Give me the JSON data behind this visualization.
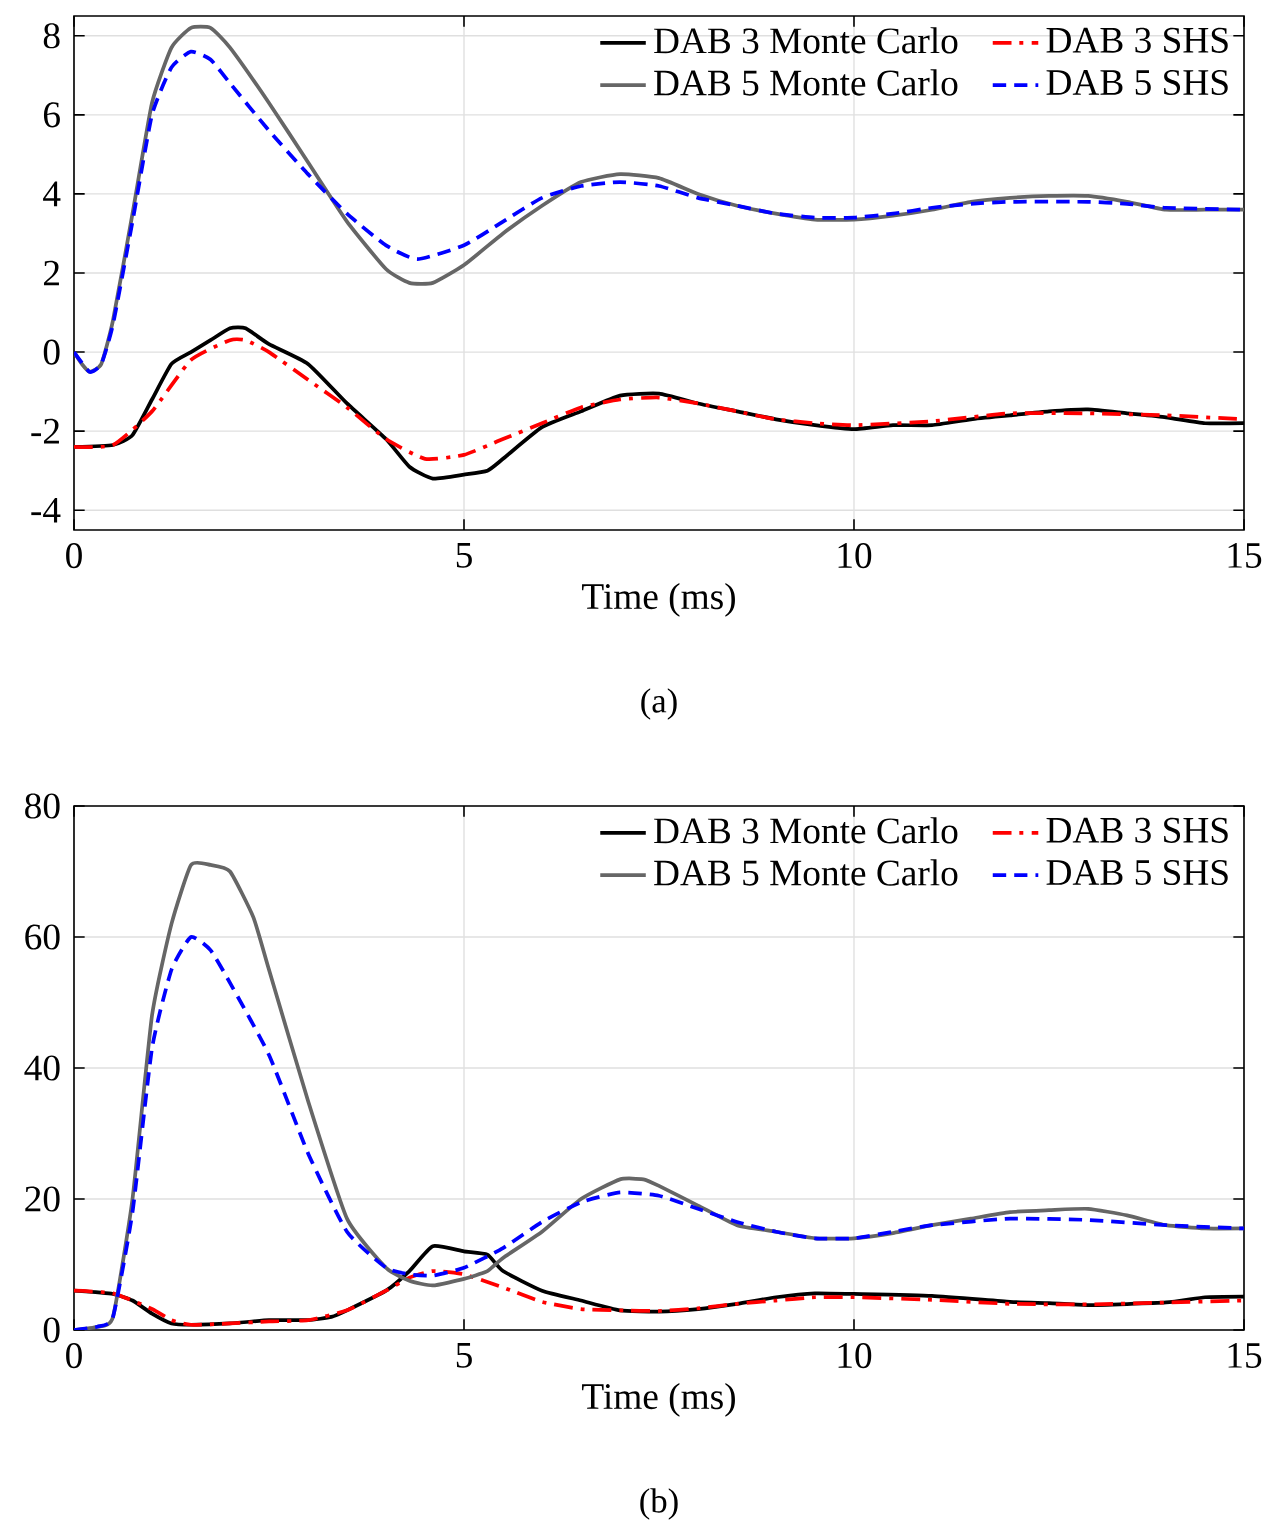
{
  "chart_data": [
    {
      "type": "line",
      "xlabel": "Time (ms)",
      "annotations": [
        "(a)"
      ],
      "xlim": [
        0,
        15
      ],
      "xticks": [
        0,
        5,
        10,
        15
      ],
      "ylim": [
        -4.5,
        8.5
      ],
      "yticks": [
        -4,
        -2,
        0,
        2,
        4,
        6,
        8
      ],
      "grid": true,
      "legend": "top right",
      "series": [
        {
          "name": "DAB 3 Monte Carlo",
          "color": "#000000",
          "line_style": "solid",
          "x": [
            0,
            0.5,
            0.75,
            1,
            1.25,
            1.5,
            1.75,
            2,
            2.2,
            2.5,
            3,
            3.5,
            4,
            4.3,
            4.6,
            5,
            5.3,
            5.5,
            6,
            6.5,
            7,
            7.5,
            8,
            8.5,
            9,
            9.5,
            10,
            10.5,
            11,
            11.5,
            12,
            12.5,
            13,
            13.5,
            14,
            14.5,
            15
          ],
          "values": [
            -2.4,
            -2.35,
            -2.1,
            -1.2,
            -0.3,
            0.0,
            0.3,
            0.6,
            0.6,
            0.2,
            -0.3,
            -1.3,
            -2.2,
            -2.9,
            -3.2,
            -3.1,
            -3.0,
            -2.7,
            -1.9,
            -1.5,
            -1.1,
            -1.05,
            -1.3,
            -1.5,
            -1.7,
            -1.85,
            -1.95,
            -1.85,
            -1.85,
            -1.7,
            -1.6,
            -1.5,
            -1.45,
            -1.55,
            -1.65,
            -1.8,
            -1.8
          ]
        },
        {
          "name": "DAB 3 SHS",
          "color": "#ff0000",
          "line_style": "dashdot",
          "x": [
            0,
            0.5,
            1,
            1.5,
            2,
            2.2,
            2.5,
            3,
            3.5,
            4,
            4.5,
            5,
            5.5,
            6,
            6.5,
            7,
            7.5,
            8,
            8.5,
            9,
            9.5,
            10,
            11,
            12,
            13,
            14,
            15
          ],
          "values": [
            -2.4,
            -2.35,
            -1.5,
            -0.2,
            0.3,
            0.3,
            0.0,
            -0.7,
            -1.4,
            -2.2,
            -2.7,
            -2.6,
            -2.2,
            -1.8,
            -1.4,
            -1.2,
            -1.15,
            -1.3,
            -1.5,
            -1.7,
            -1.8,
            -1.85,
            -1.75,
            -1.55,
            -1.55,
            -1.6,
            -1.7
          ]
        },
        {
          "name": "DAB 5 Monte Carlo",
          "color": "#666666",
          "line_style": "solid",
          "x": [
            0,
            0.1,
            0.2,
            0.35,
            0.5,
            0.75,
            1,
            1.25,
            1.5,
            1.75,
            2,
            2.5,
            3,
            3.5,
            4,
            4.3,
            4.6,
            5,
            5.5,
            6,
            6.5,
            7,
            7.5,
            8,
            8.5,
            9,
            9.5,
            10,
            10.5,
            11,
            11.5,
            12,
            12.5,
            13,
            13.5,
            14,
            14.5,
            15
          ],
          "values": [
            0,
            -0.3,
            -0.5,
            -0.3,
            0.8,
            3.5,
            6.3,
            7.7,
            8.2,
            8.2,
            7.7,
            6.3,
            4.8,
            3.3,
            2.1,
            1.75,
            1.75,
            2.2,
            3.0,
            3.7,
            4.3,
            4.5,
            4.4,
            4.0,
            3.7,
            3.5,
            3.35,
            3.35,
            3.45,
            3.6,
            3.8,
            3.9,
            3.95,
            3.95,
            3.8,
            3.6,
            3.6,
            3.6
          ]
        },
        {
          "name": "DAB 5 SHS",
          "color": "#0000ff",
          "line_style": "dashed",
          "x": [
            0,
            0.2,
            0.35,
            0.5,
            0.75,
            1,
            1.25,
            1.5,
            1.75,
            2,
            2.5,
            3,
            3.5,
            4,
            4.4,
            5,
            5.5,
            6,
            6.5,
            7,
            7.5,
            8,
            8.5,
            9,
            9.5,
            10,
            10.5,
            11,
            11.5,
            12,
            13,
            13.5,
            14,
            15
          ],
          "values": [
            0,
            -0.5,
            -0.3,
            0.7,
            3.3,
            6.0,
            7.2,
            7.6,
            7.4,
            6.8,
            5.6,
            4.5,
            3.5,
            2.7,
            2.35,
            2.7,
            3.3,
            3.9,
            4.2,
            4.3,
            4.2,
            3.9,
            3.7,
            3.5,
            3.4,
            3.4,
            3.5,
            3.65,
            3.75,
            3.8,
            3.8,
            3.75,
            3.65,
            3.6
          ]
        }
      ]
    },
    {
      "type": "line",
      "xlabel": "Time (ms)",
      "annotations": [
        "(b)"
      ],
      "xlim": [
        0,
        15
      ],
      "xticks": [
        0,
        5,
        10,
        15
      ],
      "ylim": [
        0,
        80
      ],
      "yticks": [
        0,
        20,
        40,
        60,
        80
      ],
      "grid": true,
      "legend": "top right",
      "series": [
        {
          "name": "DAB 3 Monte Carlo",
          "color": "#000000",
          "line_style": "solid",
          "x": [
            0,
            0.5,
            0.75,
            1,
            1.25,
            1.5,
            2,
            2.5,
            3,
            3.3,
            3.5,
            4,
            4.3,
            4.6,
            5,
            5.3,
            5.5,
            6,
            6.5,
            7,
            7.5,
            8,
            8.5,
            9,
            9.5,
            10,
            11,
            12,
            12.5,
            13,
            14,
            14.5,
            15
          ],
          "values": [
            6,
            5.5,
            4.5,
            2.5,
            1,
            0.8,
            1,
            1.5,
            1.5,
            2,
            3,
            6,
            9,
            12.8,
            12,
            11.5,
            9,
            6,
            4.5,
            3,
            2.8,
            3.2,
            4,
            5,
            5.6,
            5.5,
            5.2,
            4.3,
            4.1,
            3.8,
            4.2,
            5,
            5.1
          ]
        },
        {
          "name": "DAB 3 SHS",
          "color": "#ff0000",
          "line_style": "dashdot",
          "x": [
            0,
            0.5,
            1,
            1.25,
            1.5,
            2,
            2.5,
            3,
            3.5,
            4,
            4.3,
            4.6,
            5,
            5.5,
            6,
            6.5,
            7,
            7.5,
            8,
            8.5,
            9,
            9.5,
            10,
            11,
            12,
            13,
            14,
            15
          ],
          "values": [
            6,
            5.6,
            3.2,
            1.5,
            0.8,
            1.0,
            1.3,
            1.5,
            3,
            6,
            8,
            9,
            8.5,
            6.5,
            4.3,
            3.2,
            3.0,
            2.9,
            3.3,
            4,
            4.5,
            5,
            5,
            4.6,
            4,
            3.9,
            4.2,
            4.5
          ]
        },
        {
          "name": "DAB 5 Monte Carlo",
          "color": "#666666",
          "line_style": "solid",
          "x": [
            0,
            0.3,
            0.5,
            0.75,
            1,
            1.25,
            1.5,
            1.75,
            2,
            2.3,
            2.5,
            3,
            3.5,
            4,
            4.3,
            4.6,
            5,
            5.3,
            5.5,
            6,
            6.5,
            7,
            7.3,
            7.5,
            8,
            8.5,
            9,
            9.5,
            10,
            10.5,
            11,
            11.5,
            12,
            12.5,
            13,
            13.5,
            14,
            14.5,
            15
          ],
          "values": [
            0,
            0.5,
            2,
            20,
            48,
            62,
            71,
            71,
            70,
            63,
            55,
            35,
            17,
            9.5,
            7.5,
            6.8,
            7.8,
            9,
            11,
            15,
            20,
            23,
            23,
            22,
            19,
            16,
            15,
            14,
            14,
            14.8,
            16,
            17,
            18,
            18.3,
            18.5,
            17.5,
            16,
            15.5,
            15.5
          ]
        },
        {
          "name": "DAB 5 SHS",
          "color": "#0000ff",
          "line_style": "dashed",
          "x": [
            0,
            0.3,
            0.5,
            0.75,
            1,
            1.25,
            1.5,
            1.75,
            2,
            2.5,
            3,
            3.5,
            4,
            4.3,
            4.6,
            5,
            5.5,
            6,
            6.5,
            7,
            7.5,
            8,
            8.5,
            9,
            9.5,
            10,
            10.5,
            11,
            12,
            13,
            14,
            15
          ],
          "values": [
            0,
            0.5,
            2,
            18,
            43,
            55,
            60,
            58,
            53,
            42,
            27,
            15,
            9.5,
            8.5,
            8.3,
            9.5,
            12.5,
            16.5,
            19.5,
            21,
            20.5,
            18.5,
            16.5,
            15,
            14,
            14,
            15,
            16,
            17,
            16.8,
            16,
            15.5
          ]
        }
      ]
    }
  ]
}
